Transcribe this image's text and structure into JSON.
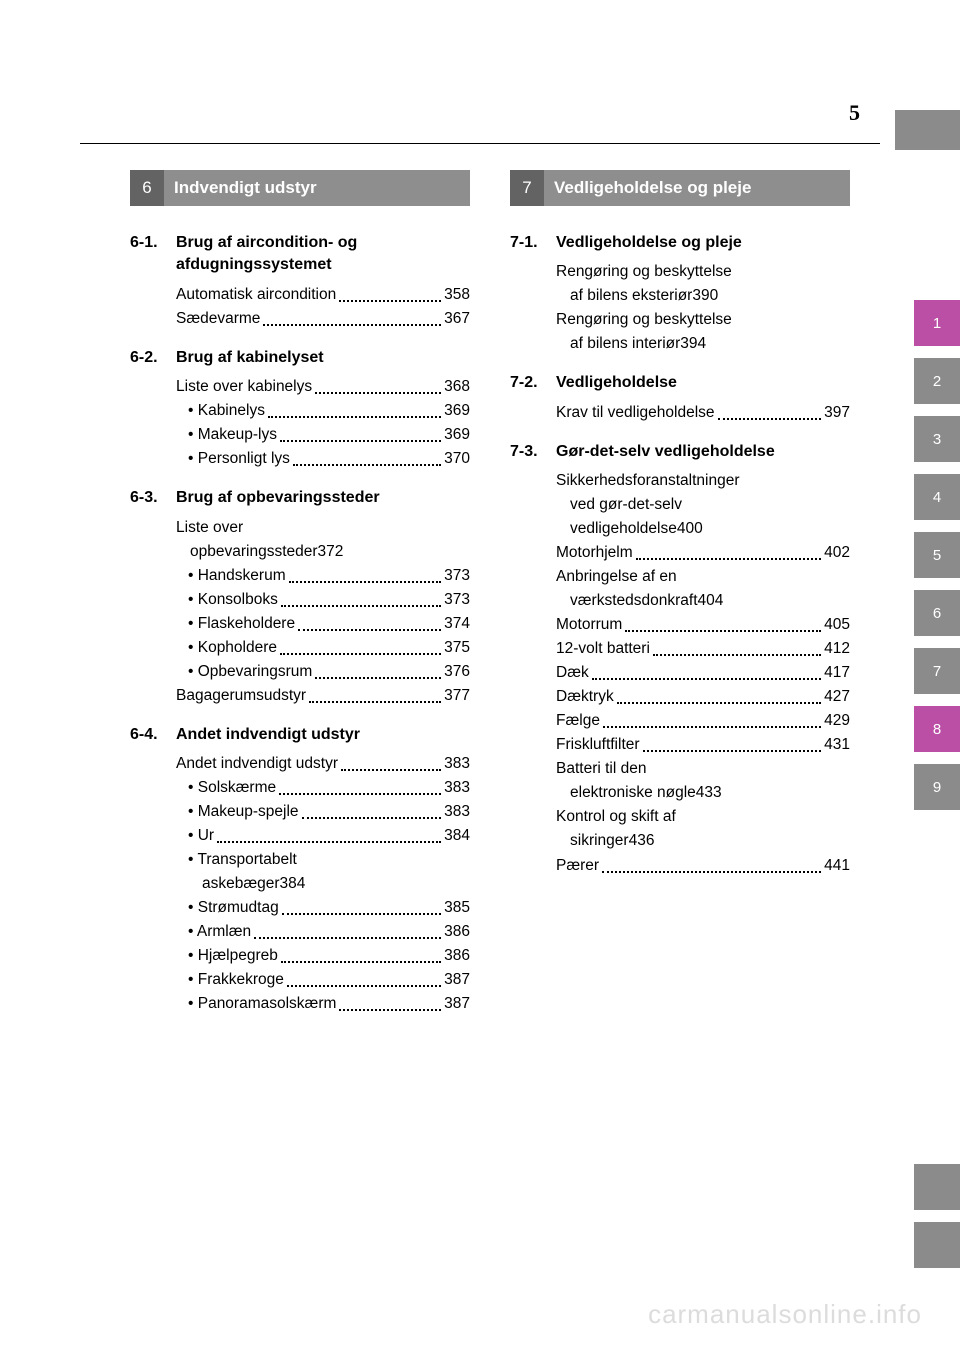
{
  "page_number": "5",
  "watermark": "carmanualsonline.info",
  "colors": {
    "tab_gray": "#8b8b8b",
    "tab_dark": "#636363",
    "tab_pink": "#bb4fa6",
    "text": "#000000",
    "bg": "#ffffff",
    "watermark": "#dcdcdc"
  },
  "side_tabs": [
    {
      "n": "1",
      "color": "#bb4fa6"
    },
    {
      "n": "2",
      "color": "#8b8b8b"
    },
    {
      "n": "3",
      "color": "#8b8b8b"
    },
    {
      "n": "4",
      "color": "#8b8b8b"
    },
    {
      "n": "5",
      "color": "#8b8b8b"
    },
    {
      "n": "6",
      "color": "#8b8b8b"
    },
    {
      "n": "7",
      "color": "#8b8b8b"
    },
    {
      "n": "8",
      "color": "#bb4fa6"
    },
    {
      "n": "9",
      "color": "#8b8b8b"
    }
  ],
  "left": {
    "num": "6",
    "title": "Indvendigt udstyr",
    "subs": [
      {
        "num": "6-1.",
        "title": "Brug af aircondition- og afdugningssystemet",
        "entries": [
          {
            "label": "Automatisk aircondition",
            "page": "358"
          },
          {
            "label": "Sædevarme",
            "page": "367"
          }
        ]
      },
      {
        "num": "6-2.",
        "title": "Brug af kabinelyset",
        "entries": [
          {
            "label": "Liste over kabinelys",
            "page": "368"
          },
          {
            "label": "• Kabinelys",
            "page": "369",
            "bullet": true
          },
          {
            "label": "• Makeup-lys",
            "page": "369",
            "bullet": true
          },
          {
            "label": "• Personligt lys",
            "page": "370",
            "bullet": true
          }
        ]
      },
      {
        "num": "6-3.",
        "title": "Brug af opbevaringssteder",
        "entries": [
          {
            "label_lines": [
              "Liste over",
              "opbevaringssteder"
            ],
            "page": "372"
          },
          {
            "label": "• Handskerum",
            "page": "373",
            "bullet": true
          },
          {
            "label": "• Konsolboks",
            "page": "373",
            "bullet": true
          },
          {
            "label": "• Flaskeholdere",
            "page": "374",
            "bullet": true
          },
          {
            "label": "• Kopholdere",
            "page": "375",
            "bullet": true
          },
          {
            "label": "• Opbevaringsrum",
            "page": "376",
            "bullet": true
          },
          {
            "label": "Bagagerumsudstyr",
            "page": "377"
          }
        ]
      },
      {
        "num": "6-4.",
        "title": "Andet indvendigt udstyr",
        "entries": [
          {
            "label": "Andet indvendigt udstyr",
            "page": "383"
          },
          {
            "label": "• Solskærme",
            "page": "383",
            "bullet": true
          },
          {
            "label": "• Makeup-spejle",
            "page": "383",
            "bullet": true
          },
          {
            "label": "• Ur",
            "page": "384",
            "bullet": true
          },
          {
            "label_lines": [
              "• Transportabelt",
              "askebæger"
            ],
            "page": "384",
            "bullet": true,
            "indent2": true
          },
          {
            "label": "• Strømudtag",
            "page": "385",
            "bullet": true
          },
          {
            "label": "• Armlæn",
            "page": "386",
            "bullet": true
          },
          {
            "label": "• Hjælpegreb",
            "page": "386",
            "bullet": true
          },
          {
            "label": "• Frakkekroge",
            "page": "387",
            "bullet": true
          },
          {
            "label": "• Panoramasolskærm",
            "page": "387",
            "bullet": true
          }
        ]
      }
    ]
  },
  "right": {
    "num": "7",
    "title": "Vedligeholdelse og pleje",
    "subs": [
      {
        "num": "7-1.",
        "title": "Vedligeholdelse og pleje",
        "entries": [
          {
            "label_lines": [
              "Rengøring og beskyttelse",
              "af bilens eksteriør"
            ],
            "page": "390"
          },
          {
            "label_lines": [
              "Rengøring og beskyttelse",
              "af bilens interiør"
            ],
            "page": "394"
          }
        ]
      },
      {
        "num": "7-2.",
        "title": "Vedligeholdelse",
        "entries": [
          {
            "label": "Krav til vedligeholdelse",
            "page": "397"
          }
        ]
      },
      {
        "num": "7-3.",
        "title": "Gør-det-selv vedligeholdelse",
        "entries": [
          {
            "label_lines": [
              "Sikkerhedsforanstaltninger",
              "ved gør-det-selv",
              "vedligeholdelse"
            ],
            "page": "400"
          },
          {
            "label": "Motorhjelm",
            "page": "402"
          },
          {
            "label_lines": [
              "Anbringelse af en",
              "værkstedsdonkraft"
            ],
            "page": "404"
          },
          {
            "label": "Motorrum",
            "page": "405"
          },
          {
            "label": "12-volt batteri",
            "page": "412"
          },
          {
            "label": "Dæk",
            "page": "417"
          },
          {
            "label": "Dæktryk",
            "page": "427"
          },
          {
            "label": "Fælge",
            "page": "429"
          },
          {
            "label": "Friskluftfilter",
            "page": "431"
          },
          {
            "label_lines": [
              "Batteri til den",
              "elektroniske nøgle"
            ],
            "page": "433"
          },
          {
            "label_lines": [
              "Kontrol og skift af",
              "sikringer"
            ],
            "page": "436"
          },
          {
            "label": "Pærer",
            "page": "441"
          }
        ]
      }
    ]
  }
}
